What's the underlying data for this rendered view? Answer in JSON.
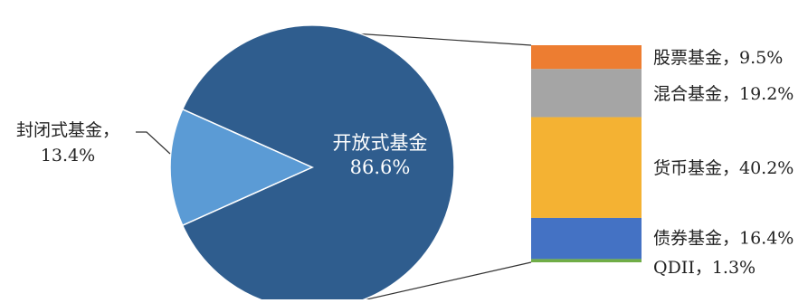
{
  "chart_data": {
    "type": "pie",
    "subtype": "bar-of-pie",
    "title": "",
    "pie": {
      "slices": [
        {
          "name": "开放式基金",
          "value": 86.6,
          "label_value": "86.6%",
          "color": "#2f5d8e",
          "label_position": "inside"
        },
        {
          "name": "封闭式基金，",
          "value": 13.4,
          "label_value": "13.4%",
          "color": "#5b9bd5",
          "label_position": "outside-left"
        }
      ]
    },
    "breakdown_of": "开放式基金",
    "breakdown": {
      "order": "top-to-bottom",
      "items": [
        {
          "name": "股票基金，",
          "value": 9.5,
          "label": "股票基金，9.5%",
          "color": "#ed7d31"
        },
        {
          "name": "混合基金，",
          "value": 19.2,
          "label": "混合基金，19.2%",
          "color": "#a5a5a5"
        },
        {
          "name": "货币基金，",
          "value": 40.2,
          "label": "货币基金，40.2%",
          "color": "#f4b233"
        },
        {
          "name": "债券基金，",
          "value": 16.4,
          "label": "债券基金，16.4%",
          "color": "#4472c4"
        },
        {
          "name": "QDII，",
          "value": 1.3,
          "label": "QDII，1.3%",
          "color": "#70ad47"
        }
      ]
    },
    "connector_color": "#333333",
    "legend": "none"
  }
}
